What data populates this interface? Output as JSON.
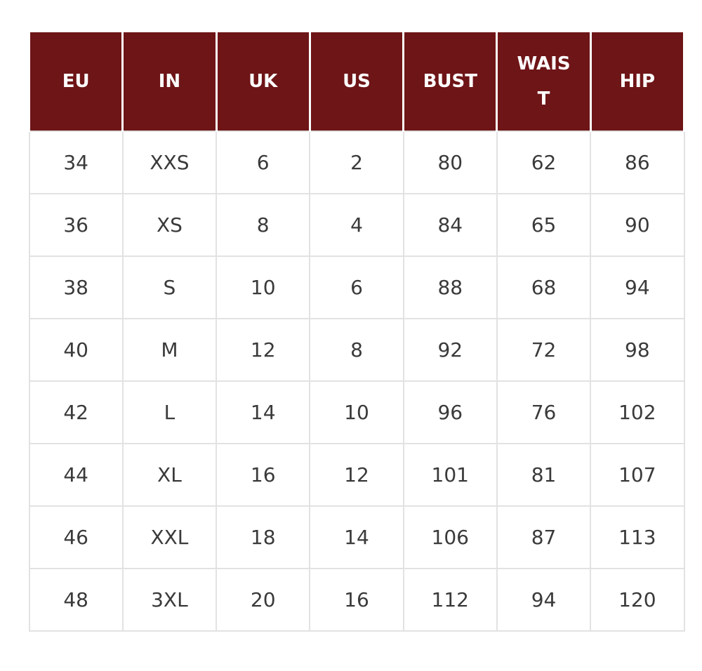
{
  "table": {
    "header": [
      "EU",
      "IN",
      "UK",
      "US",
      "BUST",
      "WAIST",
      "HIP"
    ],
    "rows": [
      [
        34,
        "XXS",
        6,
        2,
        80,
        62,
        86
      ],
      [
        36,
        "XS",
        8,
        4,
        84,
        65,
        90
      ],
      [
        38,
        "S",
        10,
        6,
        88,
        68,
        94
      ],
      [
        40,
        "M",
        12,
        8,
        92,
        72,
        98
      ],
      [
        42,
        "L",
        14,
        10,
        96,
        76,
        102
      ],
      [
        44,
        "XL",
        16,
        12,
        101,
        81,
        107
      ],
      [
        46,
        "XXL",
        18,
        14,
        106,
        87,
        113
      ],
      [
        48,
        "3XL",
        20,
        16,
        112,
        94,
        120
      ]
    ]
  }
}
